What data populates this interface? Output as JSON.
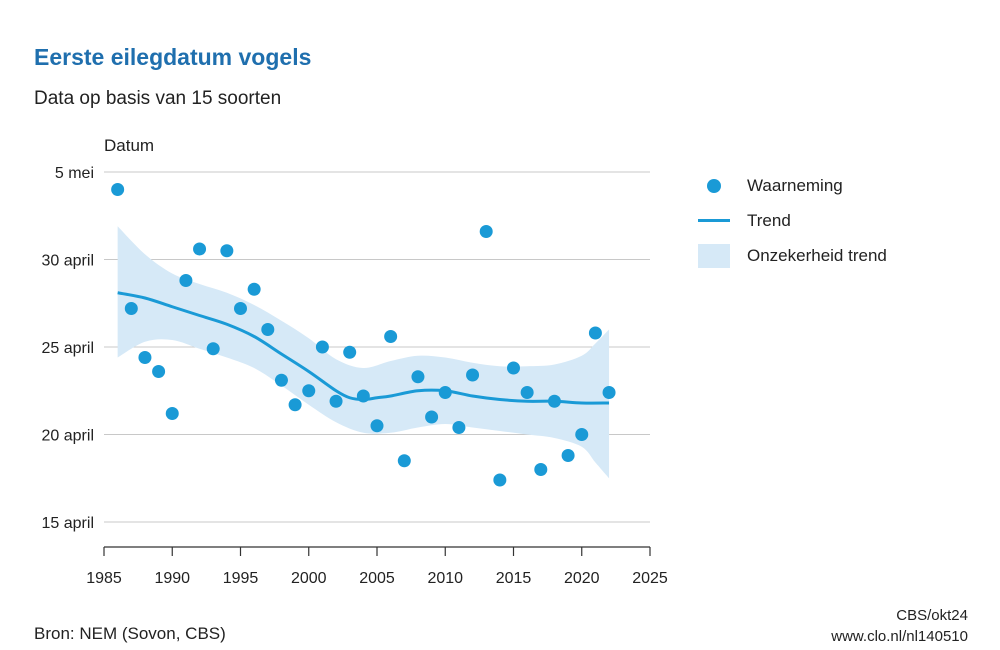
{
  "title": "Eerste eilegdatum vogels",
  "subtitle": "Data op basis van 15 soorten",
  "source": "Bron: NEM (Sovon, CBS)",
  "credit_line1": "CBS/okt24",
  "credit_line2": "www.clo.nl/nl140510",
  "colors": {
    "title": "#1f6fae",
    "points": "#1a9ad6",
    "trend": "#1a9ad6",
    "band": "#d6e9f7",
    "grid": "#c8c8c8"
  },
  "legend": [
    {
      "label": "Waarneming",
      "symbol": "dot"
    },
    {
      "label": "Trend",
      "symbol": "line"
    },
    {
      "label": "Onzekerheid trend",
      "symbol": "band"
    }
  ],
  "chart_data": {
    "type": "scatter",
    "ylabel": "Datum",
    "xlabel": "",
    "x_ticks": [
      "1985",
      "1990",
      "1995",
      "2000",
      "2005",
      "2010",
      "2015",
      "2020",
      "2025"
    ],
    "y_ticks": [
      "15 april",
      "20 april",
      "25 april",
      "30 april",
      "5 mei"
    ],
    "y_unit": "day of April (35 = 5 mei)",
    "xlim": [
      1985,
      2025
    ],
    "ylim": [
      13.5,
      35
    ],
    "grid": true,
    "legend_position": "right",
    "series": [
      {
        "name": "Waarneming",
        "type": "scatter",
        "x": [
          1986,
          1987,
          1988,
          1989,
          1990,
          1991,
          1992,
          1993,
          1994,
          1995,
          1996,
          1997,
          1998,
          1999,
          2000,
          2001,
          2002,
          2003,
          2004,
          2005,
          2006,
          2007,
          2008,
          2009,
          2010,
          2011,
          2012,
          2013,
          2014,
          2015,
          2016,
          2017,
          2018,
          2019,
          2020,
          2021,
          2022
        ],
        "y": [
          34.0,
          27.2,
          24.4,
          23.6,
          21.2,
          28.8,
          30.6,
          24.9,
          30.5,
          27.2,
          28.3,
          26.0,
          23.1,
          21.7,
          22.5,
          25.0,
          21.9,
          24.7,
          22.2,
          20.5,
          25.6,
          18.5,
          23.3,
          21.0,
          22.4,
          20.4,
          23.4,
          31.6,
          17.4,
          23.8,
          22.4,
          18.0,
          21.9,
          18.8,
          20.0,
          25.8,
          22.4
        ]
      },
      {
        "name": "Trend",
        "type": "line",
        "x": [
          1986,
          1988,
          1990,
          1992,
          1994,
          1996,
          1998,
          2000,
          2002,
          2003,
          2004,
          2005,
          2006,
          2008,
          2010,
          2012,
          2014,
          2016,
          2018,
          2020,
          2022
        ],
        "y": [
          28.1,
          27.8,
          27.3,
          26.8,
          26.3,
          25.6,
          24.6,
          23.6,
          22.5,
          22.1,
          22.0,
          22.1,
          22.2,
          22.5,
          22.5,
          22.2,
          22.0,
          21.9,
          21.9,
          21.8,
          21.8
        ]
      },
      {
        "name": "Onzekerheid trend",
        "type": "area",
        "x": [
          1986,
          1988,
          1990,
          1992,
          1994,
          1996,
          1998,
          2000,
          2002,
          2004,
          2006,
          2008,
          2010,
          2012,
          2014,
          2016,
          2018,
          2020,
          2021,
          2022
        ],
        "upper": [
          31.9,
          30.3,
          29.2,
          28.6,
          28.1,
          27.4,
          26.5,
          25.5,
          24.3,
          23.8,
          24.2,
          24.5,
          24.4,
          24.1,
          23.9,
          23.9,
          24.0,
          24.5,
          25.2,
          26.0
        ],
        "lower": [
          24.4,
          25.3,
          25.4,
          24.9,
          24.4,
          23.8,
          22.8,
          21.7,
          20.7,
          20.1,
          20.1,
          20.4,
          20.6,
          20.4,
          20.2,
          20.0,
          19.8,
          19.3,
          18.4,
          17.5
        ]
      }
    ]
  }
}
